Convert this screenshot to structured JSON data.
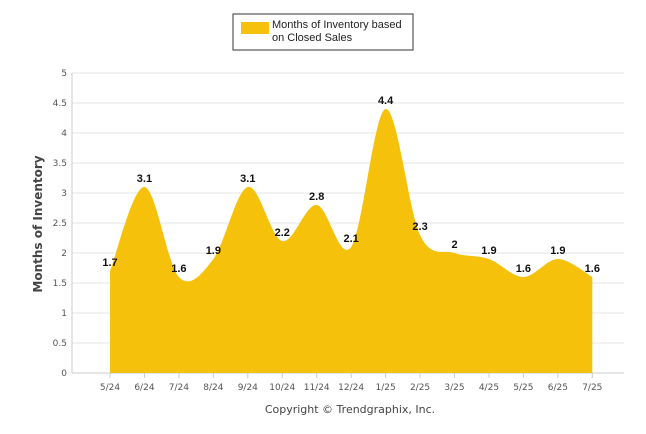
{
  "chart_data": {
    "type": "area",
    "categories": [
      "5/24",
      "6/24",
      "7/24",
      "8/24",
      "9/24",
      "10/24",
      "11/24",
      "12/24",
      "1/25",
      "2/25",
      "3/25",
      "4/25",
      "5/25",
      "6/25",
      "7/25"
    ],
    "series": [
      {
        "name": "Months of Inventory based on Closed Sales",
        "values": [
          1.7,
          3.1,
          1.6,
          1.9,
          3.1,
          2.2,
          2.8,
          2.1,
          4.4,
          2.3,
          2,
          1.9,
          1.6,
          1.9,
          1.6
        ],
        "color": "#f6c10a"
      }
    ],
    "ylabel": "Months of Inventory",
    "xlabel": "",
    "ylim": [
      0,
      5
    ],
    "yticks": [
      "0",
      "0.5",
      "1",
      "1.5",
      "2",
      "2.5",
      "3",
      "3.5",
      "4",
      "4.5",
      "5"
    ],
    "grid": true,
    "legend_position": "top-center",
    "data_labels": [
      "1.7",
      "3.1",
      "1.6",
      "1.9",
      "3.1",
      "2.2",
      "2.8",
      "2.1",
      "4.4",
      "2.3",
      "2",
      "1.9",
      "1.6",
      "1.9",
      "1.6"
    ]
  },
  "legend": {
    "line1": "Months of Inventory based",
    "line2": "on Closed Sales"
  },
  "footer": {
    "copyright": "Copyright © Trendgraphix, Inc."
  }
}
